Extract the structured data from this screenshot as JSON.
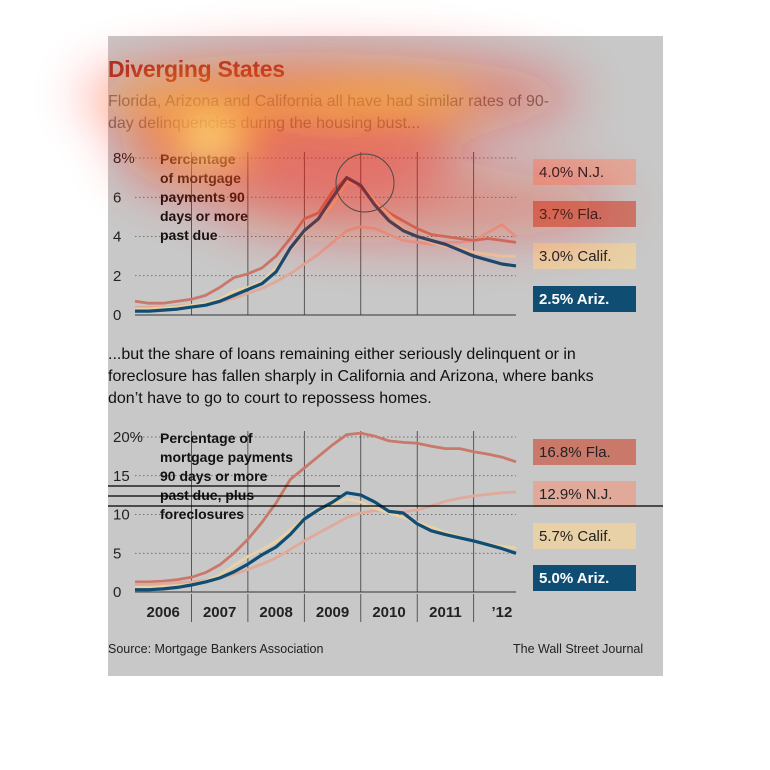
{
  "title": "Diverging States",
  "subtitle": "Florida, Arizona and California all have had similar rates of 90-day delinquencies during the housing bust...",
  "bridge_text": "...but the share of loans remaining either seriously delinquent or in foreclosure has fallen sharply in California and Arizona, where banks don’t have to go to court to repossess homes.",
  "source": "Source: Mortgage Bankers Association",
  "credit": "The Wall Street Journal",
  "x_ticks": [
    "2006",
    "2007",
    "2008",
    "2009",
    "2010",
    "2011",
    "’12"
  ],
  "colors": {
    "Fla.": "#c9786a",
    "N.J.": "#e0a99a",
    "Calif.": "#e8d1a6",
    "Ariz.": "#0f4d72",
    "panel": "#c8c8c8"
  },
  "chart_data": [
    {
      "type": "line",
      "annotation": "Percentage of mortgage payments 90 days or more past due",
      "y_ticks": [
        "8%",
        "6",
        "4",
        "2",
        "0"
      ],
      "ylim": [
        0,
        8
      ],
      "xlim": [
        2005.5,
        2012.25
      ],
      "series": [
        {
          "name": "N.J.",
          "end_label": "4.0% N.J.",
          "x": [
            2005.5,
            2005.75,
            2006,
            2006.25,
            2006.5,
            2006.75,
            2007,
            2007.25,
            2007.5,
            2007.75,
            2008,
            2008.25,
            2008.5,
            2008.75,
            2009,
            2009.25,
            2009.5,
            2009.75,
            2010,
            2010.25,
            2010.5,
            2010.75,
            2011,
            2011.25,
            2011.5,
            2011.75,
            2012,
            2012.25
          ],
          "y": [
            0.4,
            0.4,
            0.4,
            0.45,
            0.5,
            0.55,
            0.65,
            0.85,
            1.1,
            1.35,
            1.7,
            2.1,
            2.6,
            3.1,
            3.7,
            4.3,
            4.5,
            4.4,
            4.1,
            3.8,
            3.7,
            3.6,
            3.7,
            3.7,
            3.8,
            4.2,
            4.6,
            4.0
          ]
        },
        {
          "name": "Fla.",
          "end_label": "3.7% Fla.",
          "x": [
            2005.5,
            2005.75,
            2006,
            2006.25,
            2006.5,
            2006.75,
            2007,
            2007.25,
            2007.5,
            2007.75,
            2008,
            2008.25,
            2008.5,
            2008.75,
            2009,
            2009.25,
            2009.5,
            2009.75,
            2010,
            2010.25,
            2010.5,
            2010.75,
            2011,
            2011.25,
            2011.5,
            2011.75,
            2012,
            2012.25
          ],
          "y": [
            0.7,
            0.6,
            0.6,
            0.7,
            0.8,
            1.0,
            1.4,
            1.9,
            2.1,
            2.4,
            3.0,
            3.9,
            4.9,
            5.2,
            6.3,
            7.0,
            6.5,
            5.8,
            5.2,
            4.8,
            4.4,
            4.1,
            4.0,
            3.9,
            3.8,
            3.9,
            3.8,
            3.7
          ]
        },
        {
          "name": "Calif.",
          "end_label": "3.0% Calif.",
          "x": [
            2005.5,
            2005.75,
            2006,
            2006.25,
            2006.5,
            2006.75,
            2007,
            2007.25,
            2007.5,
            2007.75,
            2008,
            2008.25,
            2008.5,
            2008.75,
            2009,
            2009.25,
            2009.5,
            2009.75,
            2010,
            2010.25,
            2010.5,
            2010.75,
            2011,
            2011.25,
            2011.5,
            2011.75,
            2012,
            2012.25
          ],
          "y": [
            0.3,
            0.3,
            0.35,
            0.4,
            0.5,
            0.6,
            0.8,
            1.2,
            1.4,
            1.7,
            2.4,
            3.3,
            4.2,
            4.9,
            5.6,
            6.8,
            6.6,
            5.8,
            5.1,
            4.4,
            4.0,
            3.7,
            3.5,
            3.4,
            3.2,
            3.1,
            3.0,
            3.0
          ]
        },
        {
          "name": "Ariz.",
          "end_label": "2.5% Ariz.",
          "x": [
            2005.5,
            2005.75,
            2006,
            2006.25,
            2006.5,
            2006.75,
            2007,
            2007.25,
            2007.5,
            2007.75,
            2008,
            2008.25,
            2008.5,
            2008.75,
            2009,
            2009.25,
            2009.5,
            2009.75,
            2010,
            2010.25,
            2010.5,
            2010.75,
            2011,
            2011.25,
            2011.5,
            2011.75,
            2012,
            2012.25
          ],
          "y": [
            0.2,
            0.2,
            0.25,
            0.3,
            0.4,
            0.5,
            0.7,
            1.0,
            1.3,
            1.6,
            2.2,
            3.4,
            4.3,
            4.9,
            6.0,
            7.0,
            6.6,
            5.6,
            4.8,
            4.3,
            4.0,
            3.8,
            3.6,
            3.3,
            3.0,
            2.8,
            2.6,
            2.5
          ]
        }
      ]
    },
    {
      "type": "line",
      "annotation": "Percentage of mortgage payments 90 days or more past due, plus foreclosures",
      "y_ticks": [
        "20%",
        "15",
        "10",
        "5",
        "0"
      ],
      "ylim": [
        0,
        20
      ],
      "xlim": [
        2005.5,
        2012.25
      ],
      "series": [
        {
          "name": "Fla.",
          "end_label": "16.8% Fla.",
          "x": [
            2005.5,
            2005.75,
            2006,
            2006.25,
            2006.5,
            2006.75,
            2007,
            2007.25,
            2007.5,
            2007.75,
            2008,
            2008.25,
            2008.5,
            2008.75,
            2009,
            2009.25,
            2009.5,
            2009.75,
            2010,
            2010.25,
            2010.5,
            2010.75,
            2011,
            2011.25,
            2011.5,
            2011.75,
            2012,
            2012.25
          ],
          "y": [
            1.3,
            1.3,
            1.4,
            1.6,
            1.9,
            2.5,
            3.5,
            5.0,
            6.8,
            9.0,
            11.5,
            14.5,
            16.0,
            17.5,
            19.0,
            20.3,
            20.5,
            20.1,
            19.5,
            19.3,
            19.2,
            18.8,
            18.5,
            18.5,
            18.1,
            17.8,
            17.4,
            16.8
          ]
        },
        {
          "name": "N.J.",
          "end_label": "12.9% N.J.",
          "x": [
            2005.5,
            2005.75,
            2006,
            2006.25,
            2006.5,
            2006.75,
            2007,
            2007.25,
            2007.5,
            2007.75,
            2008,
            2008.25,
            2008.5,
            2008.75,
            2009,
            2009.25,
            2009.5,
            2009.75,
            2010,
            2010.25,
            2010.5,
            2010.75,
            2011,
            2011.25,
            2011.5,
            2011.75,
            2012,
            2012.25
          ],
          "y": [
            1.0,
            1.0,
            1.1,
            1.2,
            1.3,
            1.5,
            1.8,
            2.3,
            2.9,
            3.6,
            4.4,
            5.5,
            6.6,
            7.6,
            8.6,
            9.6,
            10.2,
            10.5,
            10.4,
            10.3,
            10.6,
            11.1,
            11.7,
            12.1,
            12.4,
            12.6,
            12.8,
            12.9
          ]
        },
        {
          "name": "Calif.",
          "end_label": "5.7% Calif.",
          "x": [
            2005.5,
            2005.75,
            2006,
            2006.25,
            2006.5,
            2006.75,
            2007,
            2007.25,
            2007.5,
            2007.75,
            2008,
            2008.25,
            2008.5,
            2008.75,
            2009,
            2009.25,
            2009.5,
            2009.75,
            2010,
            2010.25,
            2010.5,
            2010.75,
            2011,
            2011.25,
            2011.5,
            2011.75,
            2012,
            2012.25
          ],
          "y": [
            0.6,
            0.6,
            0.7,
            0.8,
            1.0,
            1.4,
            2.2,
            3.4,
            4.6,
            5.5,
            6.5,
            8.0,
            9.5,
            10.4,
            11.3,
            12.0,
            11.6,
            10.8,
            10.2,
            9.6,
            9.0,
            8.4,
            7.7,
            7.1,
            6.6,
            6.2,
            5.9,
            5.7
          ]
        },
        {
          "name": "Ariz.",
          "end_label": "5.0% Ariz.",
          "x": [
            2005.5,
            2005.75,
            2006,
            2006.25,
            2006.5,
            2006.75,
            2007,
            2007.25,
            2007.5,
            2007.75,
            2008,
            2008.25,
            2008.5,
            2008.75,
            2009,
            2009.25,
            2009.5,
            2009.75,
            2010,
            2010.25,
            2010.5,
            2010.75,
            2011,
            2011.25,
            2011.5,
            2011.75,
            2012,
            2012.25
          ],
          "y": [
            0.3,
            0.3,
            0.4,
            0.6,
            0.9,
            1.3,
            1.8,
            2.6,
            3.6,
            4.8,
            5.8,
            7.4,
            9.4,
            10.6,
            11.6,
            12.8,
            12.5,
            11.6,
            10.4,
            10.2,
            8.8,
            7.9,
            7.4,
            7.0,
            6.6,
            6.1,
            5.6,
            5.0
          ]
        }
      ]
    }
  ]
}
